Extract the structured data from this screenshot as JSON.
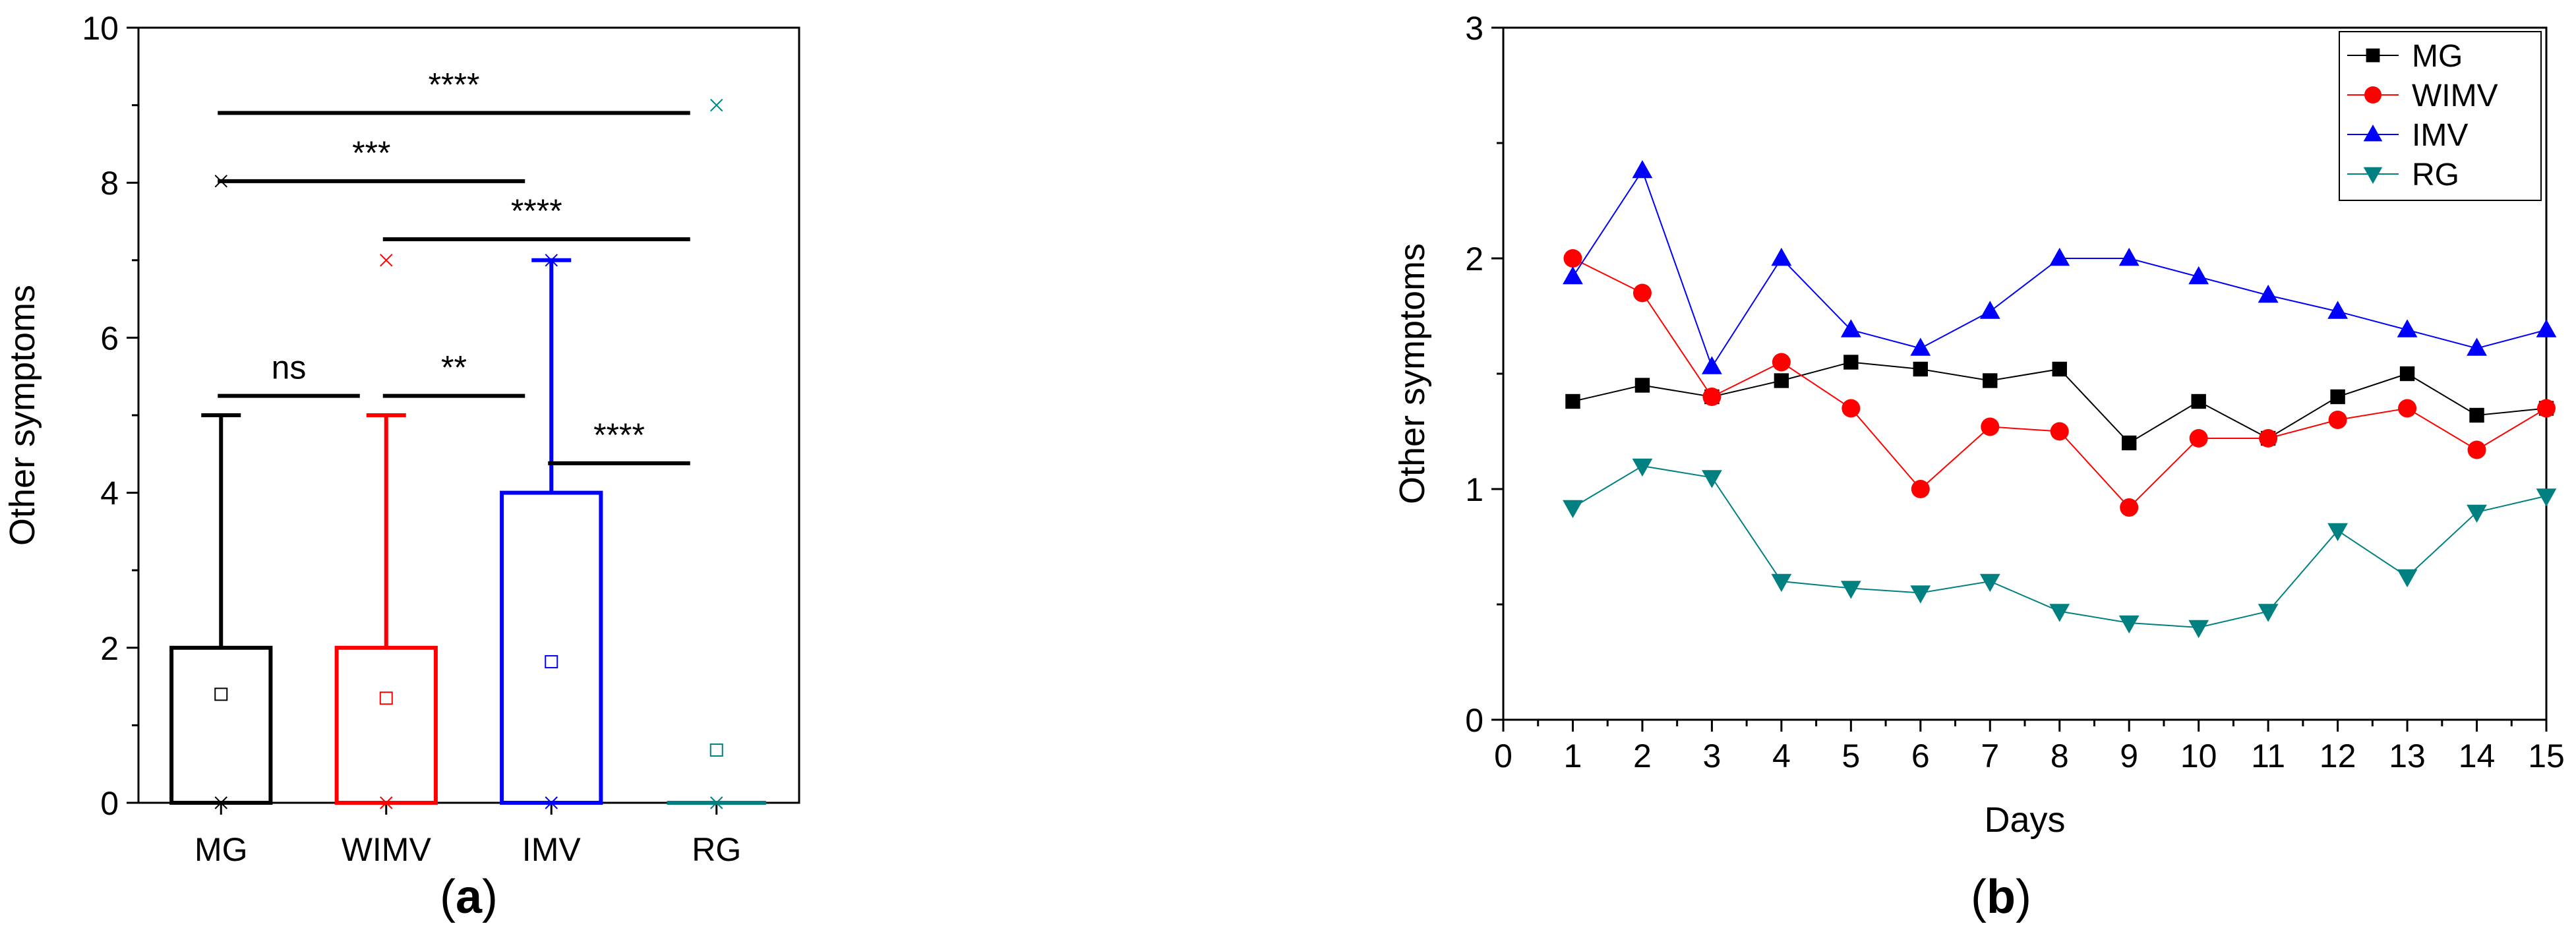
{
  "chart_data": [
    {
      "panel_label": "a",
      "type": "box",
      "ylabel": "Other symptoms",
      "xlabel": "",
      "ylim": [
        0,
        10
      ],
      "yticks": [
        0,
        2,
        4,
        6,
        8,
        10
      ],
      "categories": [
        "MG",
        "WIMV",
        "IMV",
        "RG"
      ],
      "colors": [
        "#000000",
        "#ff0000",
        "#0000ff",
        "#008080"
      ],
      "boxes": [
        {
          "group": "MG",
          "q1": 0,
          "median": 0,
          "q3": 2,
          "whisker_low": 0,
          "whisker_high": 5,
          "mean": 1.4,
          "min_marker": 0,
          "max_marker": 8.02
        },
        {
          "group": "WIMV",
          "q1": 0,
          "median": 0,
          "q3": 2,
          "whisker_low": 0,
          "whisker_high": 5,
          "mean": 1.35,
          "min_marker": 0,
          "max_marker": 7.0
        },
        {
          "group": "IMV",
          "q1": 0,
          "median": 0,
          "q3": 4,
          "whisker_low": 0,
          "whisker_high": 7,
          "mean": 1.82,
          "min_marker": 0,
          "max_marker": 7.0
        },
        {
          "group": "RG",
          "q1": 0,
          "median": 0,
          "q3": 0,
          "whisker_low": 0,
          "whisker_high": 0,
          "mean": 0.68,
          "min_marker": 0,
          "max_marker": 9.0
        }
      ],
      "significance": [
        {
          "from": "MG",
          "to": "WIMV",
          "y": 5.25,
          "label": "ns"
        },
        {
          "from": "WIMV",
          "to": "IMV",
          "y": 5.25,
          "label": "**"
        },
        {
          "from": "IMV",
          "to": "RG",
          "y": 4.38,
          "label": "****"
        },
        {
          "from": "WIMV",
          "to": "RG",
          "y": 7.27,
          "label": "****"
        },
        {
          "from": "MG",
          "to": "IMV",
          "y": 8.02,
          "label": "***"
        },
        {
          "from": "MG",
          "to": "RG",
          "y": 8.9,
          "label": "****"
        }
      ]
    },
    {
      "panel_label": "b",
      "type": "line",
      "xlabel": "Days",
      "ylabel": "Other symptoms",
      "xlim": [
        0,
        15
      ],
      "ylim": [
        0,
        3
      ],
      "xticks": [
        0,
        1,
        2,
        3,
        4,
        5,
        6,
        7,
        8,
        9,
        10,
        11,
        12,
        13,
        14,
        15
      ],
      "yticks": [
        0,
        1,
        2,
        3
      ],
      "x": [
        1,
        2,
        3,
        4,
        5,
        6,
        7,
        8,
        9,
        10,
        11,
        12,
        13,
        14,
        15
      ],
      "legend_position": "top-right",
      "series": [
        {
          "name": "MG",
          "color": "#000000",
          "marker": "square",
          "values": [
            1.38,
            1.45,
            1.4,
            1.47,
            1.55,
            1.52,
            1.47,
            1.52,
            1.2,
            1.38,
            1.22,
            1.4,
            1.5,
            1.32,
            1.35
          ]
        },
        {
          "name": "WIMV",
          "color": "#ff0000",
          "marker": "circle",
          "values": [
            2.0,
            1.85,
            1.4,
            1.55,
            1.35,
            1.0,
            1.27,
            1.25,
            0.92,
            1.22,
            1.22,
            1.3,
            1.35,
            1.17,
            1.35
          ]
        },
        {
          "name": "IMV",
          "color": "#0000ff",
          "marker": "triangle-up",
          "values": [
            1.92,
            2.38,
            1.53,
            2.0,
            1.69,
            1.61,
            1.77,
            2.0,
            2.0,
            1.92,
            1.84,
            1.77,
            1.69,
            1.61,
            1.69
          ]
        },
        {
          "name": "RG",
          "color": "#008080",
          "marker": "triangle-down",
          "values": [
            0.92,
            1.1,
            1.05,
            0.6,
            0.57,
            0.55,
            0.6,
            0.47,
            0.42,
            0.4,
            0.47,
            0.82,
            0.62,
            0.9,
            0.97
          ]
        }
      ]
    }
  ]
}
